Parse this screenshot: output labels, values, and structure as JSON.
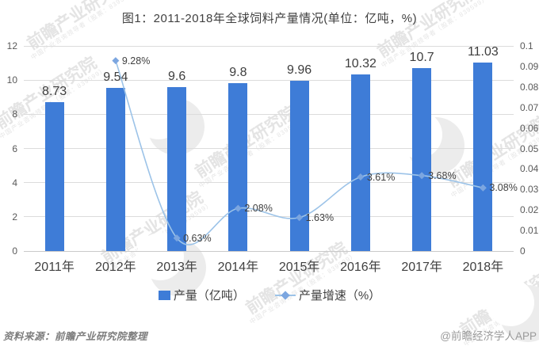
{
  "title": "图1：2011-2018年全球饲料产量情况(单位：亿吨，%)",
  "chart_data": {
    "type": "combo",
    "categories": [
      "2011年",
      "2012年",
      "2013年",
      "2014年",
      "2015年",
      "2016年",
      "2017年",
      "2018年"
    ],
    "series": [
      {
        "name": "产量（亿吨）",
        "type": "bar",
        "axis": "left",
        "values": [
          8.73,
          9.54,
          9.6,
          9.8,
          9.96,
          10.32,
          10.7,
          11.03
        ],
        "labels": [
          "8.73",
          "9.54",
          "9.6",
          "9.8",
          "9.96",
          "10.32",
          "10.7",
          "11.03"
        ]
      },
      {
        "name": "产量增速（%）",
        "type": "line",
        "axis": "right",
        "values": [
          null,
          0.0928,
          0.0063,
          0.0208,
          0.0163,
          0.0361,
          0.0368,
          0.0308
        ],
        "labels": [
          null,
          "9.28%",
          "0.63%",
          "2.08%",
          "1.63%",
          "3.61%",
          "3.68%",
          "3.08%"
        ]
      }
    ],
    "left_axis": {
      "min": 0,
      "max": 12,
      "ticks": [
        "12",
        "10",
        "8",
        "6",
        "4",
        "2",
        "0"
      ]
    },
    "right_axis": {
      "min": 0,
      "max": 0.1,
      "ticks": [
        "0.1",
        "0.09",
        "0.08",
        "0.07",
        "0.06",
        "0.05",
        "0.04",
        "0.03",
        "0.02",
        "0.01",
        "0"
      ]
    },
    "grid": true,
    "legend_position": "bottom",
    "title": "图1：2011-2018年全球饲料产量情况(单位：亿吨，%)",
    "xlabel": "",
    "ylabel": ""
  },
  "legend": [
    {
      "label": "产量（亿吨）"
    },
    {
      "label": "产量增速（%）"
    }
  ],
  "footer": {
    "source": "资料来源：前瞻产业研究院整理",
    "brand": "@前瞻经济学人APP"
  },
  "watermark": {
    "text": "前瞻产业研究院",
    "subtext": "中国产业咨询领导者（股票：839599）"
  },
  "colors": {
    "bar": "#3E7CD7",
    "line": "#9CC3E8",
    "marker": "#7CA6E0",
    "grid": "#dcdcdc",
    "axis_baseline": "#c9c9c9",
    "tick_text": "#595959",
    "label_text": "#404040"
  }
}
